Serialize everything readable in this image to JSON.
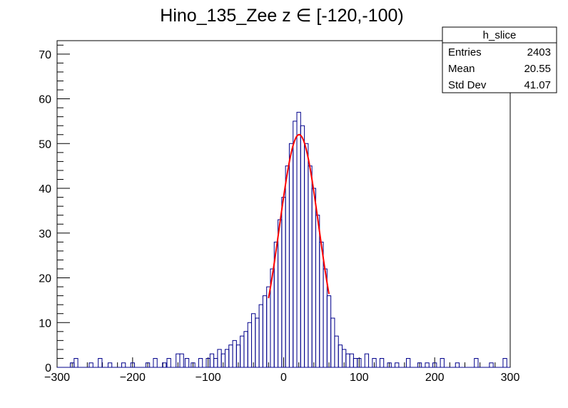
{
  "chart_data": {
    "type": "histogram",
    "title": "Hino_135_Zee z  ∈ [-120,-100)",
    "xlabel": "",
    "ylabel": "",
    "xlim": [
      -300,
      300
    ],
    "ylim": [
      0,
      73
    ],
    "x_ticks": [
      -300,
      -200,
      -100,
      0,
      100,
      200,
      300
    ],
    "y_ticks": [
      0,
      10,
      20,
      30,
      40,
      50,
      60,
      70
    ],
    "x_tick_labels": [
      "−300",
      "−200",
      "−100",
      "0",
      "100",
      "200",
      "300"
    ],
    "y_tick_labels": [
      "0",
      "10",
      "20",
      "30",
      "40",
      "50",
      "60",
      "70"
    ],
    "histogram_color": "#00008b",
    "fit_color": "#ff0000",
    "fit": {
      "type": "gaussian",
      "mean": 20.5,
      "sigma": 26,
      "amplitude": 52,
      "range": [
        -20,
        60
      ]
    },
    "bins_approx": [
      {
        "x": -280,
        "y": 1
      },
      {
        "x": -275,
        "y": 2
      },
      {
        "x": -255,
        "y": 1
      },
      {
        "x": -243,
        "y": 2
      },
      {
        "x": -230,
        "y": 1
      },
      {
        "x": -212,
        "y": 1
      },
      {
        "x": -200,
        "y": 1
      },
      {
        "x": -180,
        "y": 1
      },
      {
        "x": -170,
        "y": 2
      },
      {
        "x": -158,
        "y": 1
      },
      {
        "x": -152,
        "y": 2
      },
      {
        "x": -140,
        "y": 3
      },
      {
        "x": -135,
        "y": 3
      },
      {
        "x": -128,
        "y": 2
      },
      {
        "x": -120,
        "y": 1
      },
      {
        "x": -110,
        "y": 2
      },
      {
        "x": -100,
        "y": 2
      },
      {
        "x": -95,
        "y": 3
      },
      {
        "x": -90,
        "y": 2
      },
      {
        "x": -85,
        "y": 4
      },
      {
        "x": -80,
        "y": 3
      },
      {
        "x": -75,
        "y": 4
      },
      {
        "x": -70,
        "y": 5
      },
      {
        "x": -65,
        "y": 6
      },
      {
        "x": -60,
        "y": 5
      },
      {
        "x": -55,
        "y": 7
      },
      {
        "x": -50,
        "y": 8
      },
      {
        "x": -45,
        "y": 10
      },
      {
        "x": -40,
        "y": 12
      },
      {
        "x": -35,
        "y": 11
      },
      {
        "x": -30,
        "y": 14
      },
      {
        "x": -25,
        "y": 16
      },
      {
        "x": -20,
        "y": 18
      },
      {
        "x": -15,
        "y": 22
      },
      {
        "x": -10,
        "y": 28
      },
      {
        "x": -5,
        "y": 33
      },
      {
        "x": 0,
        "y": 38
      },
      {
        "x": 5,
        "y": 45
      },
      {
        "x": 10,
        "y": 50
      },
      {
        "x": 15,
        "y": 55
      },
      {
        "x": 20,
        "y": 57
      },
      {
        "x": 25,
        "y": 54
      },
      {
        "x": 30,
        "y": 50
      },
      {
        "x": 35,
        "y": 45
      },
      {
        "x": 40,
        "y": 40
      },
      {
        "x": 45,
        "y": 34
      },
      {
        "x": 50,
        "y": 28
      },
      {
        "x": 55,
        "y": 22
      },
      {
        "x": 60,
        "y": 16
      },
      {
        "x": 65,
        "y": 11
      },
      {
        "x": 70,
        "y": 7
      },
      {
        "x": 75,
        "y": 5
      },
      {
        "x": 80,
        "y": 4
      },
      {
        "x": 85,
        "y": 3
      },
      {
        "x": 90,
        "y": 3
      },
      {
        "x": 95,
        "y": 2
      },
      {
        "x": 100,
        "y": 2
      },
      {
        "x": 110,
        "y": 3
      },
      {
        "x": 120,
        "y": 2
      },
      {
        "x": 130,
        "y": 2
      },
      {
        "x": 140,
        "y": 1
      },
      {
        "x": 150,
        "y": 1
      },
      {
        "x": 165,
        "y": 2
      },
      {
        "x": 180,
        "y": 1
      },
      {
        "x": 190,
        "y": 1
      },
      {
        "x": 200,
        "y": 1
      },
      {
        "x": 210,
        "y": 2
      },
      {
        "x": 230,
        "y": 1
      },
      {
        "x": 255,
        "y": 2
      },
      {
        "x": 275,
        "y": 1
      },
      {
        "x": 293,
        "y": 2
      }
    ]
  },
  "stats_box": {
    "name": "h_slice",
    "rows": [
      {
        "label": "Entries",
        "value": "2403"
      },
      {
        "label": "Mean",
        "value": "20.55"
      },
      {
        "label": "Std Dev",
        "value": "41.07"
      }
    ]
  }
}
